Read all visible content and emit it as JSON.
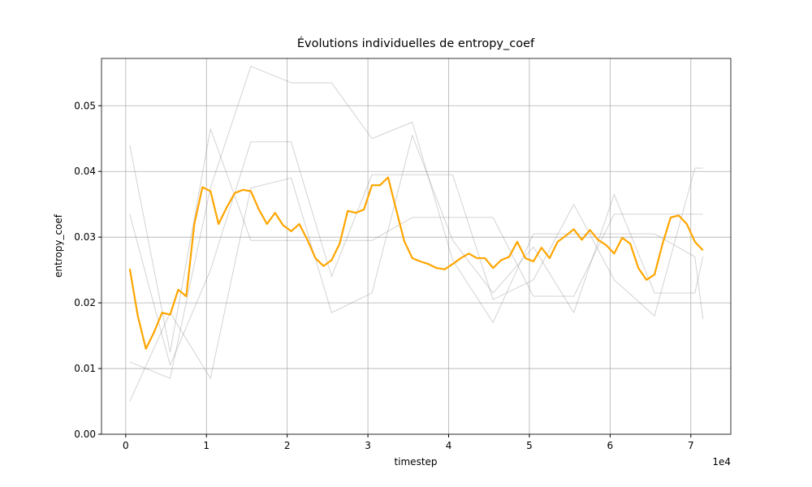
{
  "chart_data": {
    "type": "line",
    "title": "Évolutions individuelles de entropy_coef",
    "x_label": "timestep",
    "y_label": "entropy_coef",
    "x_offset_label": "1e4",
    "xlim": [
      -3000,
      74950
    ],
    "ylim": [
      0,
      0.0572
    ],
    "grid": true,
    "xticks": [
      {
        "value": 0,
        "label": "0"
      },
      {
        "value": 10000,
        "label": "1"
      },
      {
        "value": 20000,
        "label": "2"
      },
      {
        "value": 30000,
        "label": "3"
      },
      {
        "value": 40000,
        "label": "4"
      },
      {
        "value": 50000,
        "label": "5"
      },
      {
        "value": 60000,
        "label": "6"
      },
      {
        "value": 70000,
        "label": "7"
      }
    ],
    "yticks": [
      {
        "value": 0,
        "label": "0.00"
      },
      {
        "value": 0.01,
        "label": "0.01"
      },
      {
        "value": 0.02,
        "label": "0.02"
      },
      {
        "value": 0.03,
        "label": "0.03"
      },
      {
        "value": 0.04,
        "label": "0.04"
      },
      {
        "value": 0.05,
        "label": "0.05"
      }
    ],
    "series": [
      {
        "color": "gray",
        "x": [
          500,
          5500,
          10500,
          15500,
          20500,
          25500,
          30500,
          35500,
          40500,
          45500,
          50500,
          55500,
          60500,
          65500,
          70500,
          71500
        ],
        "values": [
          0.044,
          0.0125,
          0.0465,
          0.0295,
          0.0295,
          0.0295,
          0.0295,
          0.033,
          0.033,
          0.033,
          0.021,
          0.021,
          0.0335,
          0.0335,
          0.0335,
          0.0335
        ]
      },
      {
        "color": "gray",
        "x": [
          500,
          5500,
          10500,
          15500,
          20500,
          25500,
          30500,
          35500,
          40500,
          45500,
          50500,
          55500,
          60500,
          65500,
          70500,
          71500
        ],
        "values": [
          0.011,
          0.0085,
          0.0375,
          0.056,
          0.0535,
          0.0535,
          0.045,
          0.0475,
          0.0265,
          0.017,
          0.0305,
          0.0305,
          0.0305,
          0.0305,
          0.027,
          0.0175
        ]
      },
      {
        "color": "gray",
        "x": [
          500,
          5500,
          10500,
          15500,
          20500,
          25500,
          30500,
          35500,
          40500,
          45500,
          50500,
          55500,
          60500,
          65500,
          70500,
          71500
        ],
        "values": [
          0.0335,
          0.0105,
          0.025,
          0.0445,
          0.0445,
          0.024,
          0.0395,
          0.0395,
          0.0395,
          0.0205,
          0.0235,
          0.035,
          0.0235,
          0.018,
          0.0405,
          0.0405
        ]
      },
      {
        "color": "gray",
        "x": [
          500,
          5500,
          10500,
          15500,
          20500,
          25500,
          30500,
          35500,
          40500,
          45500,
          50500,
          55500,
          60500,
          65500,
          70500,
          71500
        ],
        "values": [
          0.005,
          0.0185,
          0.0085,
          0.0375,
          0.039,
          0.0185,
          0.0215,
          0.0455,
          0.0295,
          0.0215,
          0.0285,
          0.0185,
          0.0365,
          0.0215,
          0.0215,
          0.027
        ]
      },
      {
        "color": "orange",
        "width": 2.2,
        "x": [
          500,
          1500,
          2500,
          3500,
          4500,
          5500,
          6500,
          7500,
          8500,
          9500,
          10500,
          11500,
          12500,
          13500,
          14500,
          15500,
          16500,
          17500,
          18500,
          19500,
          20500,
          21500,
          22500,
          23500,
          24500,
          25500,
          26500,
          27500,
          28500,
          29500,
          30500,
          31500,
          32500,
          33500,
          34500,
          35500,
          36500,
          37500,
          38500,
          39500,
          40500,
          41500,
          42500,
          43500,
          44500,
          45500,
          46500,
          47500,
          48500,
          49500,
          50500,
          51500,
          52500,
          53500,
          54500,
          55500,
          56500,
          57500,
          58500,
          59500,
          60500,
          61500,
          62500,
          63500,
          64500,
          65500,
          66500,
          67500,
          68500,
          69500,
          70500,
          71500
        ],
        "values": [
          0.0252,
          0.018,
          0.013,
          0.0155,
          0.0185,
          0.0182,
          0.022,
          0.021,
          0.032,
          0.0376,
          0.037,
          0.032,
          0.0345,
          0.0367,
          0.0372,
          0.037,
          0.0342,
          0.032,
          0.0337,
          0.0318,
          0.0309,
          0.032,
          0.0296,
          0.0268,
          0.0256,
          0.0265,
          0.029,
          0.034,
          0.0337,
          0.0342,
          0.0379,
          0.0379,
          0.0391,
          0.0342,
          0.0294,
          0.0268,
          0.0263,
          0.0259,
          0.0253,
          0.0251,
          0.0259,
          0.0268,
          0.0275,
          0.0268,
          0.0268,
          0.0253,
          0.0265,
          0.027,
          0.0293,
          0.0268,
          0.0263,
          0.0284,
          0.0268,
          0.0293,
          0.0302,
          0.0312,
          0.0296,
          0.0311,
          0.0296,
          0.0288,
          0.0275,
          0.0299,
          0.029,
          0.0253,
          0.0235,
          0.0243,
          0.029,
          0.033,
          0.0333,
          0.032,
          0.0293,
          0.028
        ]
      }
    ]
  }
}
